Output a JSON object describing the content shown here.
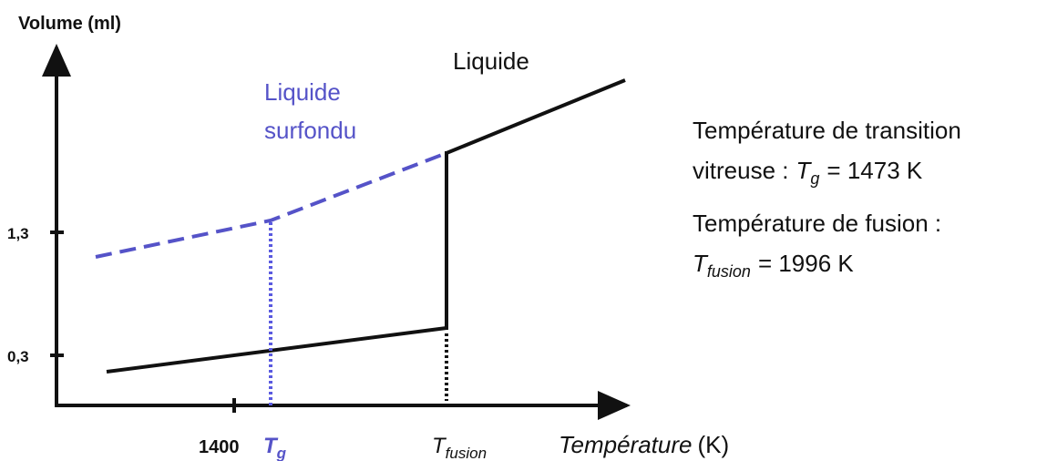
{
  "axis": {
    "y_title": "Volume (ml)",
    "y_ticks": [
      "1,3",
      "0,3"
    ],
    "x_ticks": [
      "1400"
    ],
    "x_title": {
      "name": "Température",
      "unit": "(K)"
    }
  },
  "symbols": {
    "tg": {
      "base": "T",
      "sub": "g"
    },
    "tfusion": {
      "base": "T",
      "sub": "fusion"
    }
  },
  "labels": {
    "liquide": "Liquide",
    "surfondu": [
      "Liquide",
      "surfondu"
    ]
  },
  "notes": [
    {
      "line1": "Température de transition",
      "line2": {
        "text": "vitreuse :",
        "symbol": "T",
        "sub": "g",
        "value": "= 1473 K"
      }
    },
    {
      "line1": "Température de fusion :",
      "line2": {
        "symbol": "T",
        "sub": "fusion",
        "value": "= 1996 K"
      }
    }
  ]
}
